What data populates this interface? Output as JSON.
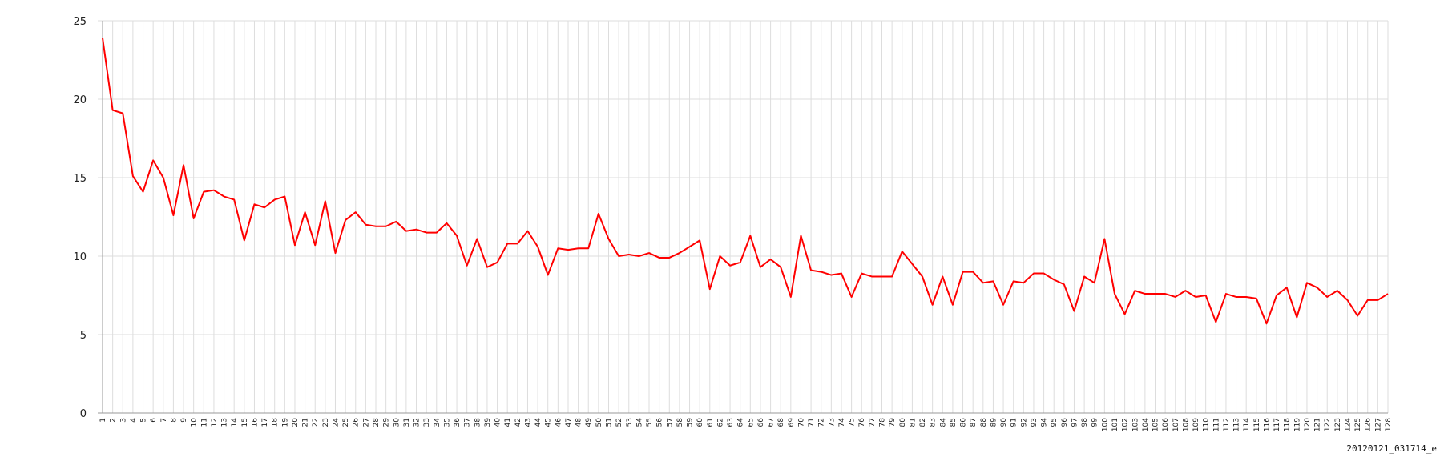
{
  "caption": "20120121_031714_e",
  "chart_data": {
    "type": "line",
    "title": "",
    "xlabel": "",
    "ylabel": "",
    "ylim": [
      0,
      25
    ],
    "yticks": [
      0,
      5,
      10,
      15,
      20,
      25
    ],
    "grid": true,
    "legend": "none",
    "x": [
      1,
      2,
      3,
      4,
      5,
      6,
      7,
      8,
      9,
      10,
      11,
      12,
      13,
      14,
      15,
      16,
      17,
      18,
      19,
      20,
      21,
      22,
      23,
      24,
      25,
      26,
      27,
      28,
      29,
      30,
      31,
      32,
      33,
      34,
      35,
      36,
      37,
      38,
      39,
      40,
      41,
      42,
      43,
      44,
      45,
      46,
      47,
      48,
      49,
      50,
      51,
      52,
      53,
      54,
      55,
      56,
      57,
      58,
      59,
      60,
      61,
      62,
      63,
      64,
      65,
      66,
      67,
      68,
      69,
      70,
      71,
      72,
      73,
      74,
      75,
      76,
      77,
      78,
      79,
      80,
      81,
      82,
      83,
      84,
      85,
      86,
      87,
      88,
      89,
      90,
      91,
      92,
      93,
      94,
      95,
      96,
      97,
      98,
      99,
      100,
      101,
      102,
      103,
      104,
      105,
      106,
      107,
      108,
      109,
      110,
      111,
      112,
      113,
      114,
      115,
      116,
      117,
      118,
      119,
      120,
      121,
      122,
      123,
      124,
      125,
      126,
      127,
      128
    ],
    "series": [
      {
        "color": "#ff0000",
        "values": [
          23.9,
          19.3,
          19.1,
          15.1,
          14.1,
          16.1,
          15.0,
          12.6,
          15.8,
          12.4,
          14.1,
          14.2,
          13.8,
          13.6,
          11.0,
          13.3,
          13.1,
          13.6,
          13.8,
          10.7,
          12.8,
          10.7,
          13.5,
          10.2,
          12.3,
          12.8,
          12.0,
          11.9,
          11.9,
          12.2,
          11.6,
          11.7,
          11.5,
          11.5,
          12.1,
          11.3,
          9.4,
          11.1,
          9.3,
          9.6,
          10.8,
          10.8,
          11.6,
          10.6,
          8.8,
          10.5,
          10.4,
          10.5,
          10.5,
          12.7,
          11.1,
          10.0,
          10.1,
          10.0,
          10.2,
          9.9,
          9.9,
          10.2,
          10.6,
          11.0,
          7.9,
          10.0,
          9.4,
          9.6,
          11.3,
          9.3,
          9.8,
          9.3,
          7.4,
          11.3,
          9.1,
          9.0,
          8.8,
          8.9,
          7.4,
          8.9,
          8.7,
          8.7,
          8.7,
          10.3,
          9.5,
          8.7,
          6.9,
          8.7,
          6.9,
          9.0,
          9.0,
          8.3,
          8.4,
          6.9,
          8.4,
          8.3,
          8.9,
          8.9,
          8.5,
          8.2,
          6.5,
          8.7,
          8.3,
          11.1,
          7.6,
          6.3,
          7.8,
          7.6,
          7.6,
          7.6,
          7.4,
          7.8,
          7.4,
          7.5,
          5.8,
          7.6,
          7.4,
          7.4,
          7.3,
          5.7,
          7.5,
          8.0,
          6.1,
          8.3,
          8.0,
          7.4,
          7.8,
          7.2,
          6.2,
          7.2,
          7.2,
          7.6
        ]
      }
    ]
  }
}
